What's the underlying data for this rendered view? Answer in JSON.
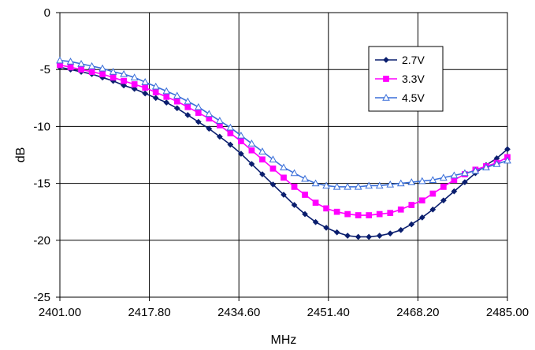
{
  "chart_data": {
    "type": "line",
    "xlabel": "MHz",
    "ylabel": "dB",
    "xlim": [
      2401.0,
      2485.0
    ],
    "ylim": [
      -25,
      0
    ],
    "x_ticks": [
      "2401.00",
      "2417.80",
      "2434.60",
      "2451.40",
      "2468.20",
      "2485.00"
    ],
    "y_ticks": [
      "0",
      "-5",
      "-10",
      "-15",
      "-20",
      "-25"
    ],
    "grid": true,
    "legend_position": "top-right",
    "x": [
      2401.0,
      2403.0,
      2405.0,
      2407.0,
      2409.0,
      2411.0,
      2413.0,
      2415.0,
      2417.0,
      2419.0,
      2421.0,
      2423.0,
      2425.0,
      2427.0,
      2429.0,
      2431.0,
      2433.0,
      2435.0,
      2437.0,
      2439.0,
      2441.0,
      2443.0,
      2445.0,
      2447.0,
      2449.0,
      2451.0,
      2453.0,
      2455.0,
      2457.0,
      2459.0,
      2461.0,
      2463.0,
      2465.0,
      2467.0,
      2469.0,
      2471.0,
      2473.0,
      2475.0,
      2477.0,
      2479.0,
      2481.0,
      2483.0,
      2485.0
    ],
    "series": [
      {
        "name": "2.7V",
        "color": "#0a1e6e",
        "marker": "diamond",
        "values": [
          -4.8,
          -5.0,
          -5.2,
          -5.4,
          -5.7,
          -6.0,
          -6.4,
          -6.7,
          -7.1,
          -7.5,
          -7.9,
          -8.4,
          -9.0,
          -9.6,
          -10.2,
          -10.9,
          -11.6,
          -12.4,
          -13.3,
          -14.2,
          -15.1,
          -16.0,
          -16.9,
          -17.7,
          -18.4,
          -18.9,
          -19.3,
          -19.6,
          -19.7,
          -19.7,
          -19.6,
          -19.4,
          -19.1,
          -18.6,
          -18.0,
          -17.3,
          -16.5,
          -15.7,
          -14.9,
          -14.1,
          -13.4,
          -12.8,
          -12.0
        ]
      },
      {
        "name": "3.3V",
        "color": "#ff00ff",
        "marker": "square",
        "values": [
          -4.6,
          -4.8,
          -5.0,
          -5.2,
          -5.4,
          -5.7,
          -6.0,
          -6.3,
          -6.6,
          -7.0,
          -7.4,
          -7.8,
          -8.3,
          -8.8,
          -9.3,
          -9.9,
          -10.6,
          -11.3,
          -12.1,
          -12.9,
          -13.7,
          -14.5,
          -15.3,
          -16.0,
          -16.7,
          -17.2,
          -17.5,
          -17.7,
          -17.8,
          -17.8,
          -17.7,
          -17.6,
          -17.3,
          -16.9,
          -16.5,
          -15.9,
          -15.3,
          -14.7,
          -14.2,
          -13.8,
          -13.5,
          -13.2,
          -12.7
        ]
      },
      {
        "name": "4.5V",
        "color": "#3a6fd9",
        "marker": "triangle",
        "values": [
          -4.2,
          -4.3,
          -4.5,
          -4.7,
          -4.9,
          -5.2,
          -5.4,
          -5.7,
          -6.1,
          -6.5,
          -6.9,
          -7.3,
          -7.8,
          -8.3,
          -8.9,
          -9.5,
          -10.1,
          -10.8,
          -11.5,
          -12.2,
          -12.9,
          -13.6,
          -14.1,
          -14.6,
          -15.0,
          -15.2,
          -15.3,
          -15.3,
          -15.3,
          -15.2,
          -15.2,
          -15.1,
          -15.0,
          -14.9,
          -14.8,
          -14.7,
          -14.5,
          -14.3,
          -14.1,
          -13.9,
          -13.6,
          -13.3,
          -13.0
        ]
      }
    ]
  }
}
